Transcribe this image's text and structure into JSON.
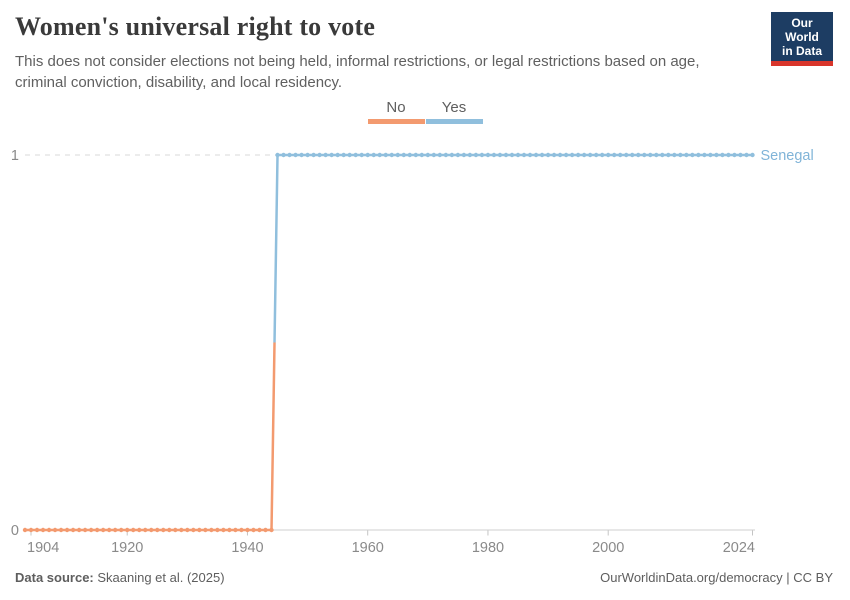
{
  "header": {
    "title": "Women's universal right to vote",
    "subtitle": "This does not consider elections not being held, informal restrictions, or legal restrictions based on age, criminal conviction, disability, and local residency.",
    "logo": {
      "line1": "Our World",
      "line2": "in Data",
      "bg_color": "#1d3d63",
      "accent_color": "#d8352b"
    }
  },
  "legend": {
    "items": [
      {
        "label": "No",
        "color": "#f39a6f"
      },
      {
        "label": "Yes",
        "color": "#90bfdd"
      }
    ]
  },
  "chart_data": {
    "type": "line",
    "title": "Women's universal right to vote",
    "entity": "Senegal",
    "entity_color": "#80b4d8",
    "xlim": [
      1903,
      2024
    ],
    "ylim": [
      0,
      1
    ],
    "x_ticks": [
      1904,
      1920,
      1940,
      1960,
      1980,
      2000,
      2024
    ],
    "y_ticks": [
      0,
      1
    ],
    "grid": "dashed-horizontal",
    "legend_position": "top-center",
    "marker": "circle-every-year",
    "series": [
      {
        "name": "Senegal",
        "step_year": 1945,
        "segments": [
          {
            "label": "No",
            "value": 0,
            "start_year": 1903,
            "end_year": 1944,
            "color": "#f39a6f"
          },
          {
            "label": "Yes",
            "value": 1,
            "start_year": 1945,
            "end_year": 2024,
            "color": "#90bfdd"
          }
        ]
      }
    ]
  },
  "footer": {
    "datasource_label": "Data source:",
    "datasource_value": " Skaaning et al. (2025)",
    "attribution": "OurWorldinData.org/democracy | CC BY"
  }
}
